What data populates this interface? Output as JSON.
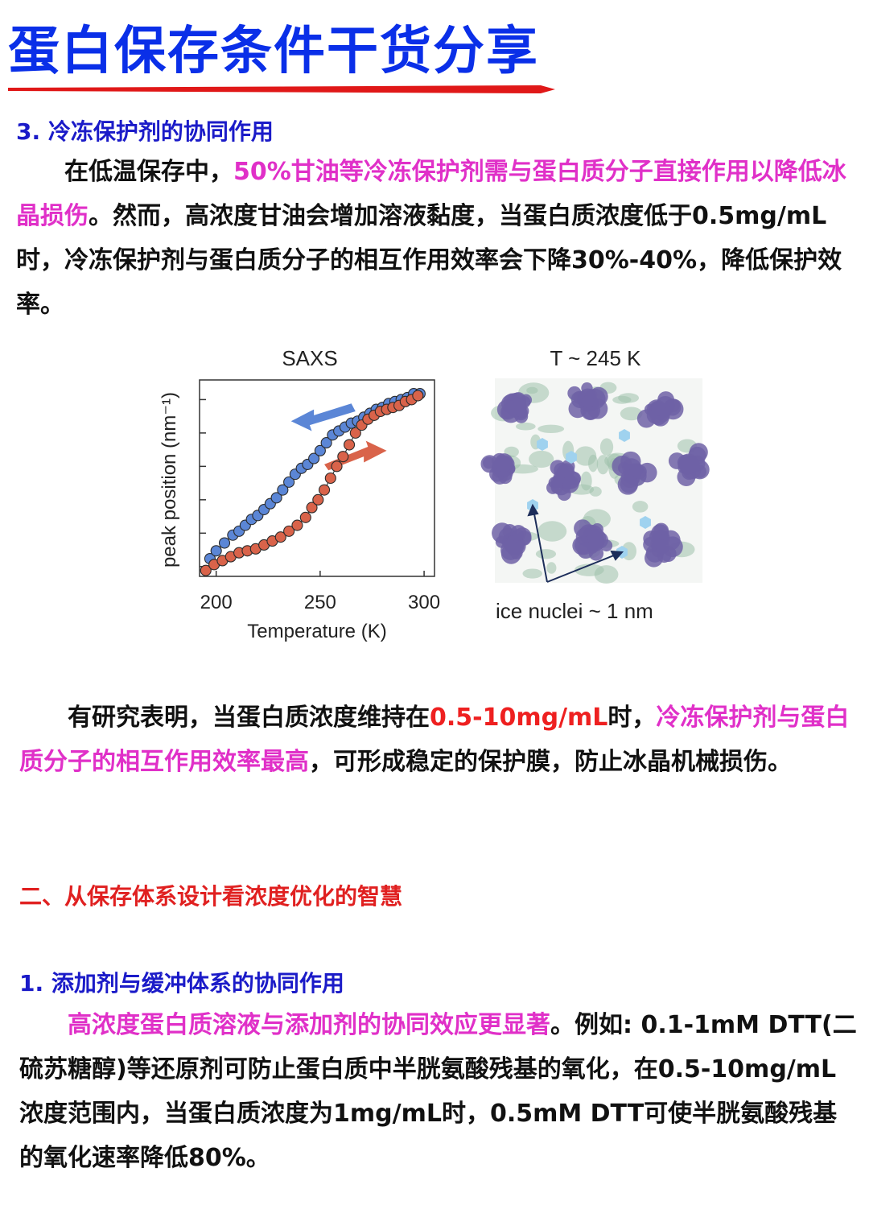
{
  "page": {
    "title": "蛋白保存条件干货分享",
    "section_3_1": "3. 冷冻保护剂的协同作用",
    "para1": {
      "indent": "　　",
      "t1": "在低温保存中，",
      "h1": "50%甘油等冷冻保护剂需与蛋白质分子直接作用以降低冰晶损伤",
      "t2": "。然而，高浓度甘油会增加溶液黏度，当蛋白质浓度低于0.5mg/mL时，冷冻保护剂与蛋白质分子的相互作用效率会下降30%-40%，降低保护效率。"
    },
    "para2": {
      "indent": "　　",
      "t1": "有研究表明，当蛋白质浓度维持在",
      "r1": "0.5-10mg/mL",
      "t2": "时，",
      "h1": "冷冻保护剂与蛋白质分子的相互作用效率最高",
      "t3": "，可形成稳定的保护膜，防止冰晶机械损伤。"
    },
    "section_2": "二、从保存体系设计看浓度优化的智慧",
    "section_1": "1. 添加剂与缓冲体系的协同作用",
    "para3": {
      "indent": "　　",
      "h1": "高浓度蛋白质溶液与添加剂的协同效应更显著",
      "t1": "。例如: 0.1-1mM DTT(二硫苏糖醇)等还原剂可防止蛋白质中半胱氨酸残基的氧化，在0.5-10mg/mL浓度范围内，当蛋白质浓度为1mg/mL时，0.5mM DTT可使半胱氨酸残基的氧化速率降低80%。"
    }
  },
  "colors": {
    "title_blue": "#0a2fe8",
    "underline_red": "#e01818",
    "heading_blue": "#1b1bc8",
    "heading_red": "#e02020",
    "highlight_magenta": "#e030c8",
    "highlight_red": "#ee2020",
    "series_blue": "#5b86d6",
    "series_red": "#d9634a",
    "protein_purple": "#6f62a6",
    "ice_blue": "#9fd2ef",
    "water_green": "#9fc1ac"
  },
  "chart_data": {
    "type": "scatter",
    "title": "SAXS",
    "xlabel": "Temperature (K)",
    "ylabel": "peak position (nm⁻¹)",
    "xlim": [
      192,
      305
    ],
    "ylim": [
      0,
      1
    ],
    "xticks": [
      200,
      250,
      300
    ],
    "series": [
      {
        "color_key": "series_blue",
        "direction": "cooling",
        "x": [
          197,
          200,
          204,
          208,
          211,
          214,
          217,
          220,
          223,
          226,
          229,
          232,
          235,
          238,
          241,
          244,
          247,
          250,
          253,
          256,
          259,
          262,
          265,
          268,
          271,
          274,
          277,
          280,
          283,
          286,
          289,
          292,
          295,
          298
        ],
        "y": [
          0.09,
          0.13,
          0.17,
          0.21,
          0.23,
          0.26,
          0.29,
          0.31,
          0.34,
          0.37,
          0.4,
          0.44,
          0.48,
          0.52,
          0.55,
          0.57,
          0.6,
          0.64,
          0.68,
          0.72,
          0.74,
          0.76,
          0.78,
          0.79,
          0.81,
          0.83,
          0.85,
          0.86,
          0.88,
          0.89,
          0.9,
          0.91,
          0.93,
          0.93
        ]
      },
      {
        "color_key": "series_red",
        "direction": "heating",
        "x": [
          195,
          199,
          203,
          207,
          211,
          215,
          219,
          223,
          227,
          231,
          235,
          239,
          243,
          246,
          249,
          252,
          255,
          258,
          261,
          264,
          267,
          270,
          273,
          276,
          279,
          282,
          285,
          288,
          291,
          294,
          297
        ],
        "y": [
          0.03,
          0.06,
          0.08,
          0.1,
          0.12,
          0.13,
          0.14,
          0.16,
          0.18,
          0.2,
          0.23,
          0.26,
          0.3,
          0.35,
          0.39,
          0.44,
          0.5,
          0.56,
          0.61,
          0.67,
          0.73,
          0.77,
          0.8,
          0.82,
          0.84,
          0.85,
          0.86,
          0.87,
          0.89,
          0.9,
          0.92
        ]
      }
    ],
    "arrows": [
      {
        "color_key": "series_blue",
        "direction": "left"
      },
      {
        "color_key": "series_red",
        "direction": "right"
      }
    ]
  },
  "illustration": {
    "title": "T ~ 245 K",
    "caption": "ice nuclei ~ 1 nm"
  }
}
